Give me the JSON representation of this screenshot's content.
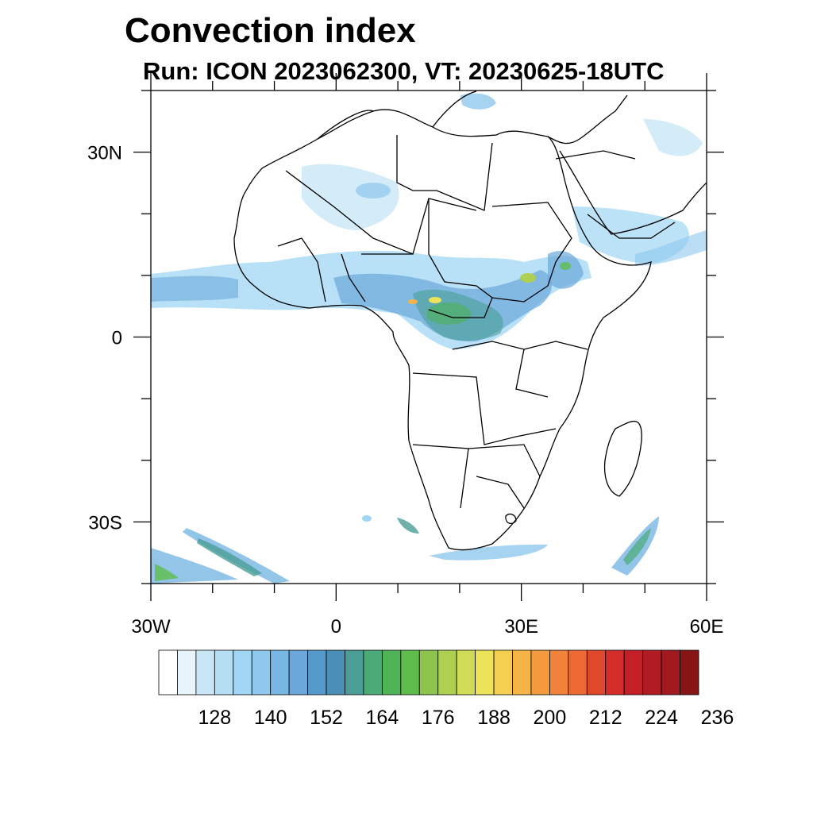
{
  "title": "Convection index",
  "subtitle": "Run: ICON 2023062300,  VT: 20230625-18UTC",
  "axes": {
    "lon_range": [
      -30,
      60
    ],
    "lat_range": [
      -40,
      40
    ],
    "x_ticks": [
      {
        "value": -30,
        "label": "30W"
      },
      {
        "value": 0,
        "label": "0"
      },
      {
        "value": 30,
        "label": "30E"
      },
      {
        "value": 60,
        "label": "60E"
      }
    ],
    "y_ticks": [
      {
        "value": 30,
        "label": "30N"
      },
      {
        "value": 0,
        "label": "0"
      },
      {
        "value": -30,
        "label": "30S"
      }
    ],
    "minor_step_deg": 10
  },
  "colorbar": {
    "colors": [
      "#ffffff",
      "#e8f4fb",
      "#c9e6f6",
      "#b5ddf4",
      "#a0d6f3",
      "#8ec8ec",
      "#78b7e4",
      "#6aa8dc",
      "#5598cc",
      "#4a8fb8",
      "#4a9e96",
      "#4aaa78",
      "#4db355",
      "#5ebd4a",
      "#8cc44d",
      "#aed050",
      "#d0dc58",
      "#ede35a",
      "#f5d050",
      "#f5b445",
      "#f49a3e",
      "#f0823a",
      "#ec6a32",
      "#e0482c",
      "#d42d2a",
      "#c41f28",
      "#b01b24",
      "#a01a20",
      "#881516"
    ],
    "labels": [
      "128",
      "140",
      "152",
      "164",
      "176",
      "188",
      "200",
      "212",
      "224",
      "236"
    ]
  },
  "map": {
    "domain": "Africa",
    "features": [
      "coastlines",
      "country-borders",
      "convection-index-shading"
    ]
  }
}
